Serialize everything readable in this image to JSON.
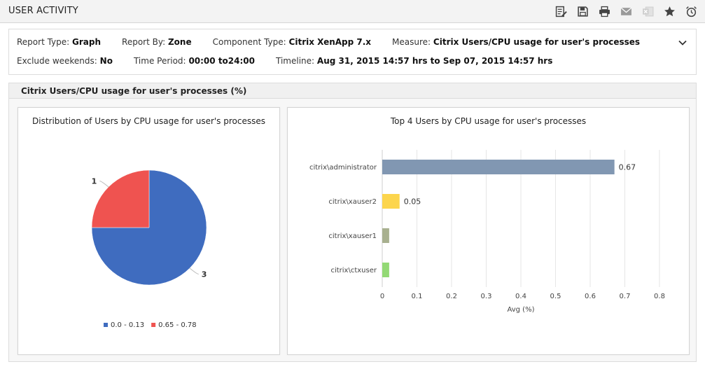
{
  "header": {
    "title": "USER ACTIVITY",
    "toolbar": [
      {
        "name": "edit-report-icon"
      },
      {
        "name": "save-icon"
      },
      {
        "name": "print-icon"
      },
      {
        "name": "email-icon"
      },
      {
        "name": "excel-export-icon"
      },
      {
        "name": "favorite-icon"
      },
      {
        "name": "schedule-alarm-icon"
      }
    ]
  },
  "filters": {
    "report_type_label": "Report Type:",
    "report_type_value": "Graph",
    "report_by_label": "Report By:",
    "report_by_value": "Zone",
    "component_type_label": "Component Type:",
    "component_type_value": "Citrix XenApp 7.x",
    "measure_label": "Measure:",
    "measure_value": "Citrix Users/CPU usage for user's processes",
    "exclude_weekends_label": "Exclude weekends:",
    "exclude_weekends_value": "No",
    "time_period_label": "Time Period:",
    "time_period_value": "00:00 to24:00",
    "timeline_label": "Timeline:",
    "timeline_value": "Aug 31, 2015 14:57 hrs to Sep 07, 2015 14:57 hrs"
  },
  "section": {
    "title": "Citrix Users/CPU usage for user's processes (%)"
  },
  "colors": {
    "pie_blue": "#3f6cbf",
    "pie_red": "#ef5350",
    "bar_administrator": "#8197b2",
    "bar_xauser2": "#fcd54d",
    "bar_xauser1": "#a8b08f",
    "bar_ctxuser": "#93d975"
  },
  "chart_data": [
    {
      "type": "pie",
      "title": "Distribution of Users by CPU usage for user's processes",
      "slices": [
        {
          "label": "0.0 - 0.13",
          "value": 3,
          "color": "#3f6cbf"
        },
        {
          "label": "0.65 - 0.78",
          "value": 1,
          "color": "#ef5350"
        }
      ],
      "legend": "bottom"
    },
    {
      "type": "bar",
      "orientation": "horizontal",
      "title": "Top 4 Users by CPU usage for user's processes",
      "categories": [
        "citrix\\administrator",
        "citrix\\xauser2",
        "citrix\\xauser1",
        "citrix\\ctxuser"
      ],
      "values": [
        0.67,
        0.05,
        0.02,
        0.02
      ],
      "data_labels": [
        "0.67",
        "0.05",
        "",
        ""
      ],
      "colors": [
        "#8197b2",
        "#fcd54d",
        "#a8b08f",
        "#93d975"
      ],
      "xlabel": "Avg (%)",
      "xlim": [
        0,
        0.8
      ],
      "xticks": [
        "0",
        "0.1",
        "0.2",
        "0.3",
        "0.4",
        "0.5",
        "0.6",
        "0.7",
        "0.8"
      ],
      "grid": true
    }
  ]
}
